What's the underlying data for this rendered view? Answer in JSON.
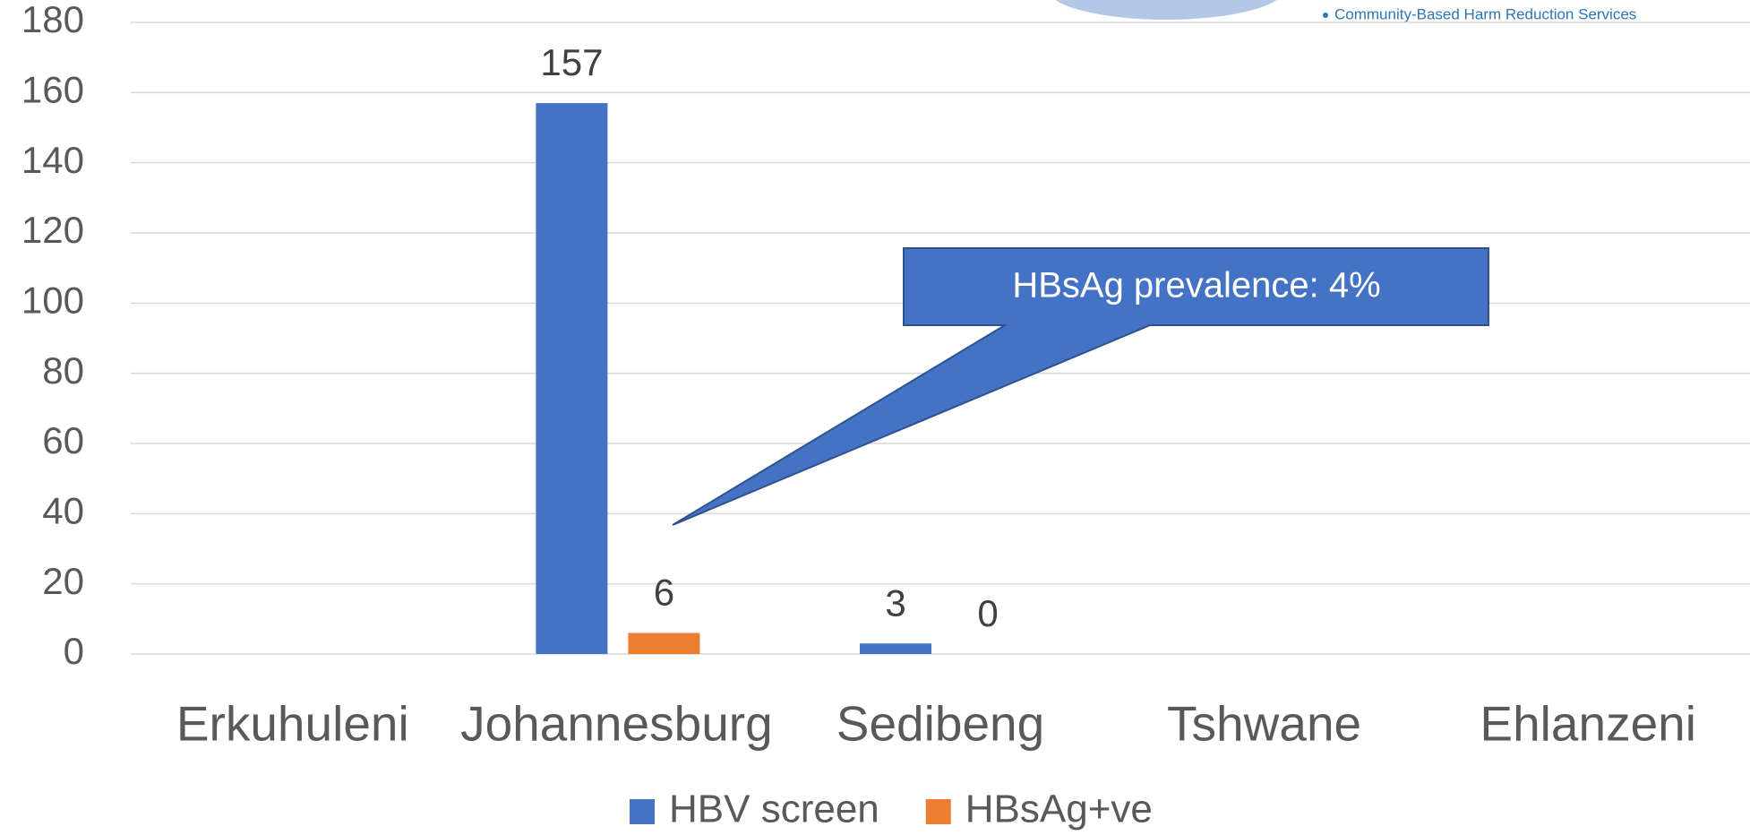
{
  "chart_data": {
    "type": "bar",
    "categories": [
      "Erkuhuleni",
      "Johannesburg",
      "Sedibeng",
      "Tshwane",
      "Ehlanzeni"
    ],
    "series": [
      {
        "name": "HBV screen",
        "color": "#4472c4",
        "values": [
          null,
          157,
          3,
          null,
          null
        ]
      },
      {
        "name": "HBsAg+ve",
        "color": "#ed7d31",
        "values": [
          null,
          6,
          0,
          null,
          null
        ]
      }
    ],
    "ylim": [
      0,
      180
    ],
    "yticks": [
      0,
      20,
      40,
      60,
      80,
      100,
      120,
      140,
      160,
      180
    ],
    "grid": true,
    "legend": "bottom",
    "annotation": "HBsAg prevalence: 4%",
    "header_text": "Community-Based Harm Reduction Services"
  }
}
